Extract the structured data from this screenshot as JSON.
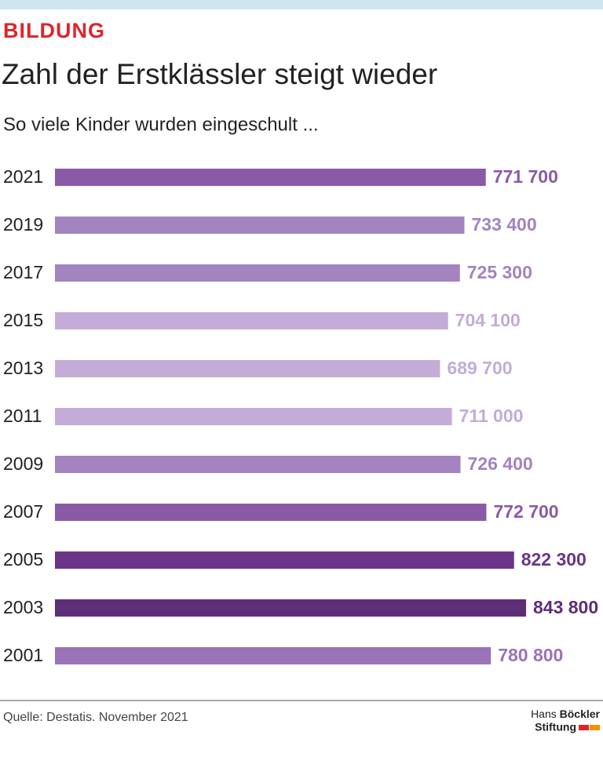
{
  "kicker": "BILDUNG",
  "chart_data": {
    "type": "barh",
    "title": "Zahl der Erstklässler steigt wieder",
    "subtitle": "So viele Kinder wurden eingeschult ...",
    "categories": [
      "2021",
      "2019",
      "2017",
      "2015",
      "2013",
      "2011",
      "2009",
      "2007",
      "2005",
      "2003",
      "2001"
    ],
    "values": [
      771700,
      733400,
      725300,
      704100,
      689700,
      711000,
      726400,
      772700,
      822300,
      843800,
      780800
    ],
    "value_labels": [
      "771 700",
      "733 400",
      "725 300",
      "704 100",
      "689 700",
      "711 000",
      "726 400",
      "772 700",
      "822 300",
      "843 800",
      "780 800"
    ],
    "colors": [
      "#8a5aa6",
      "#a383c0",
      "#a383c0",
      "#c3acd8",
      "#c3acd8",
      "#c3acd8",
      "#a383c0",
      "#8a5aa6",
      "#6a3589",
      "#5e2d78",
      "#9a72b8"
    ]
  },
  "footer": {
    "source": "Quelle: Destatis. November 2021",
    "logo_first": "Hans",
    "logo_bold": "Böckler",
    "logo_second": "Stiftung"
  }
}
